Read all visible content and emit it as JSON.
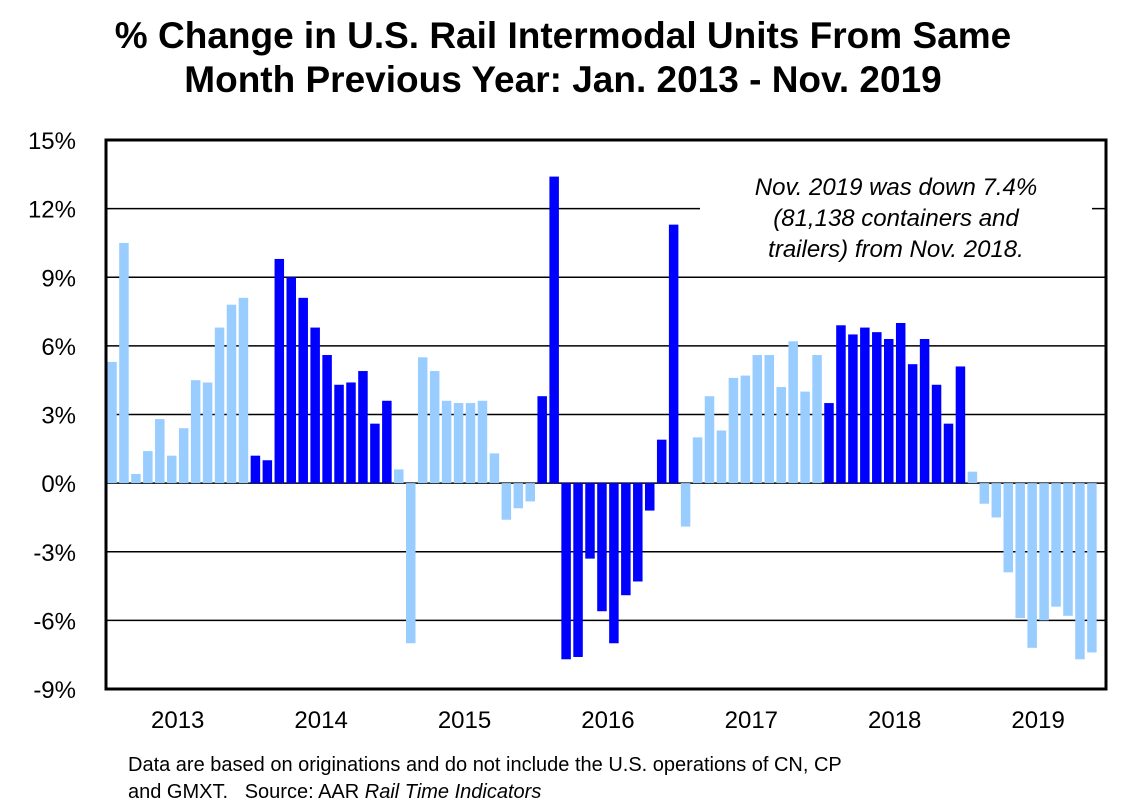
{
  "title_lines": [
    "% Change in U.S. Rail Intermodal Units From Same",
    "Month Previous Year: Jan. 2013 - Nov. 2019"
  ],
  "annotation_lines": [
    "Nov. 2019 was down 7.4%",
    "(81,138 containers and",
    "trailers) from Nov. 2018."
  ],
  "footnote": {
    "line1": "Data are based on originations and do not include the U.S. operations of CN, CP",
    "line2_plain": "and GMXT.   Source: AAR ",
    "line2_italic": "Rail Time Indicators"
  },
  "colors": {
    "light": "#99ccff",
    "dark": "#0000ff"
  },
  "chart_data": {
    "type": "bar",
    "title": "% Change in U.S. Rail Intermodal Units From Same Month Previous Year: Jan. 2013 - Nov. 2019",
    "xlabel": "",
    "ylabel": "",
    "ylim": [
      -9,
      15
    ],
    "yticks": [
      15,
      12,
      9,
      6,
      3,
      0,
      -3,
      -6,
      -9
    ],
    "ytick_labels": [
      "15%",
      "12%",
      "9%",
      "6%",
      "3%",
      "0%",
      "-3%",
      "-6%",
      "-9%"
    ],
    "grid": true,
    "year_labels": [
      "2013",
      "2014",
      "2015",
      "2016",
      "2017",
      "2018",
      "2019"
    ],
    "series": [
      {
        "name": "2013",
        "color_key": "light",
        "values": [
          5.3,
          10.5,
          0.4,
          1.4,
          2.8,
          1.2,
          2.4,
          4.5,
          4.4,
          6.8,
          7.8,
          8.1
        ]
      },
      {
        "name": "2014",
        "color_key": "dark",
        "values": [
          1.2,
          1.0,
          9.8,
          9.0,
          8.1,
          6.8,
          5.6,
          4.3,
          4.4,
          4.9,
          2.6,
          3.6
        ]
      },
      {
        "name": "2015",
        "color_key": "light",
        "values": [
          0.6,
          -7.0,
          5.5,
          4.9,
          3.6,
          3.5,
          3.5,
          3.6,
          1.3,
          -1.6,
          -1.1,
          -0.8
        ]
      },
      {
        "name": "2016",
        "color_key": "dark",
        "values": [
          3.8,
          13.4,
          -7.7,
          -7.6,
          -3.3,
          -5.6,
          -7.0,
          -4.9,
          -4.3,
          -1.2,
          1.9,
          11.3
        ]
      },
      {
        "name": "2017",
        "color_key": "light",
        "values": [
          -1.9,
          2.0,
          3.8,
          2.3,
          4.6,
          4.7,
          5.6,
          5.6,
          4.2,
          6.2,
          4.0,
          5.6
        ]
      },
      {
        "name": "2018",
        "color_key": "dark",
        "values": [
          3.5,
          6.9,
          6.5,
          6.8,
          6.6,
          6.3,
          7.0,
          5.2,
          6.3,
          4.3,
          2.6,
          5.1
        ]
      },
      {
        "name": "2019",
        "color_key": "light",
        "values": [
          0.5,
          -0.9,
          -1.5,
          -3.9,
          -5.9,
          -7.2,
          -6.0,
          -5.4,
          -5.8,
          -7.7,
          -7.4
        ]
      }
    ]
  }
}
